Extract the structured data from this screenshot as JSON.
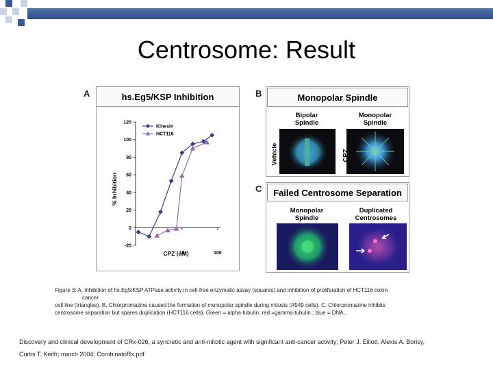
{
  "slide": {
    "title": "Centrosome: Result",
    "colors": {
      "band": "#3a5a98",
      "deco_dark": "#3a5a98",
      "deco_light": "#c8d2e6"
    }
  },
  "panel_a": {
    "letter": "A",
    "title": "hs.Eg5/KSP Inhibition",
    "y_axis_label": "% Inhibition",
    "x_axis_label": "CPZ (uM)",
    "y_ticks": [
      "120",
      "100",
      "80",
      "60",
      "40",
      "20",
      "0",
      "-20"
    ],
    "x_ticks": [
      "10",
      "100"
    ],
    "legend": [
      "Kinesin",
      "HCT116"
    ]
  },
  "chart_data": {
    "type": "line",
    "title": "hs.Eg5/KSP Inhibition",
    "xlabel": "CPZ (uM)",
    "ylabel": "% Inhibition",
    "x_scale": "log",
    "xlim": [
      0.5,
      120
    ],
    "ylim": [
      -20,
      120
    ],
    "y_ticks": [
      -20,
      0,
      20,
      40,
      60,
      80,
      100,
      120
    ],
    "x_ticks": [
      10,
      100
    ],
    "legend_position": "top-left",
    "series": [
      {
        "name": "Kinesin",
        "color": "#3b3f8c",
        "marker": "diamond",
        "x": [
          0.6,
          1.2,
          2.5,
          5,
          10,
          20,
          40,
          70
        ],
        "y": [
          -5,
          -10,
          18,
          53,
          85,
          95,
          98,
          105
        ]
      },
      {
        "name": "HCT116",
        "color": "#9a6aa8",
        "marker": "triangle",
        "x": [
          2,
          4,
          7,
          10,
          20,
          50
        ],
        "y": [
          -9,
          -3,
          -1,
          59,
          90,
          97
        ]
      }
    ]
  },
  "panel_b": {
    "letter": "B",
    "title": "Monopolar Spindle",
    "col1": "Bipolar\nSpindle",
    "col2": "Monopolar\nSpindle",
    "row1": "Vehicle",
    "row2": "CPZ"
  },
  "panel_c": {
    "letter": "C",
    "title": "Failed Centrosome Separation",
    "col1": "Monopolar\nSpindle",
    "col2": "Duplicated\nCentrosomes"
  },
  "caption": {
    "line1": "Figure 3: A. Inhibition of hs.Eg5/KSP ATPase activity in cell-free enzymatic assay (squares) and inhibition of proliferation of HCT116 colon",
    "line2": "cancer",
    "line3": "cell line (triangles). B. Chlorpromazine caused the formation of monopolar spindle during mitosis (A549 cells). C. Chlorpromazine inhibits",
    "line4": "centrosome separation but spares duplication (HCT116 cells). Green = alpha-tubulin; red =gamma-tubulin ; blue = DNA.."
  },
  "reference": {
    "line1": "Discovery and clinical development of CRx-026, a syncretic and anti-mitotic agent with significant anti-cancer activity; Peter J. Elliott, Alexis A. Borisy,",
    "line2": "Curtis T. Keith; march 2004; CombinatoRx.pdf"
  }
}
